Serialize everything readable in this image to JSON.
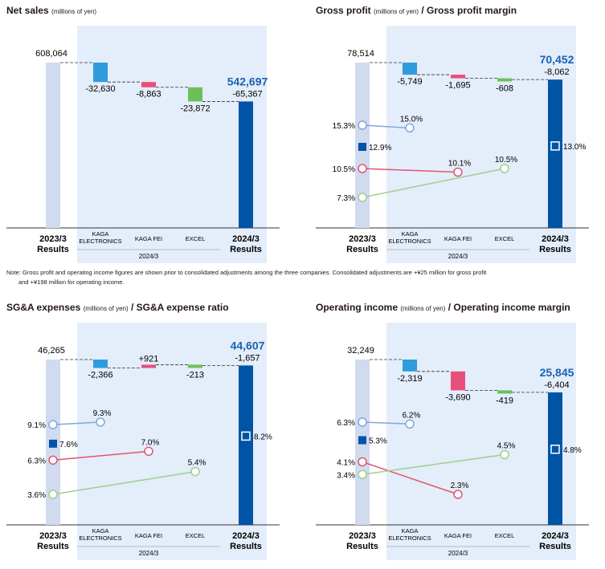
{
  "colors": {
    "bg_band": "#e4edfa",
    "prev_bar": "#d0dbef",
    "kaga": "#2e9cdb",
    "fei": "#e84f7b",
    "excel": "#6dbf5a",
    "total": "#0054a6",
    "total_label": "#1863b3",
    "line_kaga": "#7fa9db",
    "line_fei": "#e0566f",
    "line_excel": "#9fd08a",
    "axis": "#333333",
    "connector": "#333333"
  },
  "note": {
    "line1": "Note: Gross profit and operating income figures are shown prior to consolidated adjustments among the three companies. Consolidated adjustments are +¥25 million for gross profit",
    "line2": "and +¥198 million for operating income."
  },
  "chart_data": [
    {
      "type": "waterfall",
      "title": "Net sales",
      "title_unit": "(millions of yen)",
      "title_suffix": "",
      "categories": [
        "2023/3 Results",
        "KAGA ELECTRONICS",
        "KAGA FEI",
        "EXCEL",
        "2024/3 Results"
      ],
      "category_labels": [
        [
          "2023/3",
          "Results"
        ],
        [
          "KAGA",
          "ELECTRONICS"
        ],
        [
          "KAGA FEI"
        ],
        [
          "EXCEL"
        ],
        [
          "2024/3",
          "Results"
        ]
      ],
      "group_label": "2024/3",
      "start": {
        "value": 608064,
        "label": "608,064"
      },
      "changes": [
        {
          "name": "KAGA ELECTRONICS",
          "value": -32630,
          "label": "-32,630"
        },
        {
          "name": "KAGA FEI",
          "value": -8863,
          "label": "-8,863"
        },
        {
          "name": "EXCEL",
          "value": -23872,
          "label": "-23,872"
        }
      ],
      "end": {
        "value": 542697,
        "label": "542,697",
        "change_label": "-65,367"
      },
      "ymin": 330000,
      "ylim": [
        0,
        608064
      ],
      "ratios": null
    },
    {
      "type": "waterfall",
      "title": "Gross profit",
      "title_unit": "(millions of yen)",
      "title_suffix": "/ Gross profit margin",
      "categories": [
        "2023/3 Results",
        "KAGA ELECTRONICS",
        "KAGA FEI",
        "EXCEL",
        "2024/3 Results"
      ],
      "category_labels": [
        [
          "2023/3",
          "Results"
        ],
        [
          "KAGA",
          "ELECTRONICS"
        ],
        [
          "KAGA FEI"
        ],
        [
          "EXCEL"
        ],
        [
          "2024/3",
          "Results"
        ]
      ],
      "group_label": "2024/3",
      "start": {
        "value": 78514,
        "label": "78,514"
      },
      "changes": [
        {
          "name": "KAGA ELECTRONICS",
          "value": -5749,
          "label": "-5,749"
        },
        {
          "name": "KAGA FEI",
          "value": -1695,
          "label": "-1,695"
        },
        {
          "name": "EXCEL",
          "value": -608,
          "label": "-608"
        }
      ],
      "end": {
        "value": 70452,
        "label": "70,452",
        "change_label": "-8,062"
      },
      "ratios": {
        "prev_total": {
          "value": 12.9,
          "label": "12.9%"
        },
        "curr_total": {
          "value": 13.0,
          "label": "13.0%"
        },
        "lines": [
          {
            "name": "KAGA ELECTRONICS",
            "from": 15.3,
            "to": 15.0,
            "from_label": "15.3%",
            "to_label": "15.0%",
            "to_index": 1
          },
          {
            "name": "KAGA FEI",
            "from": 10.5,
            "to": 10.1,
            "from_label": "10.5%",
            "to_label": "10.1%",
            "to_index": 2
          },
          {
            "name": "EXCEL",
            "from": 7.3,
            "to": 10.5,
            "from_label": "7.3%",
            "to_label": "10.5%",
            "to_index": 3
          }
        ]
      }
    },
    {
      "type": "waterfall",
      "title": "SG&A expenses",
      "title_unit": "(millions of yen)",
      "title_suffix": "/ SG&A expense ratio",
      "categories": [
        "2023/3 Results",
        "KAGA ELECTRONICS",
        "KAGA FEI",
        "EXCEL",
        "2024/3 Results"
      ],
      "category_labels": [
        [
          "2023/3",
          "Results"
        ],
        [
          "KAGA",
          "ELECTRONICS"
        ],
        [
          "KAGA FEI"
        ],
        [
          "EXCEL"
        ],
        [
          "2024/3",
          "Results"
        ]
      ],
      "group_label": "2024/3",
      "start": {
        "value": 46265,
        "label": "46,265"
      },
      "changes": [
        {
          "name": "KAGA ELECTRONICS",
          "value": -2366,
          "label": "-2,366"
        },
        {
          "name": "KAGA FEI",
          "value": 921,
          "label": "+921"
        },
        {
          "name": "EXCEL",
          "value": -213,
          "label": "-213"
        }
      ],
      "end": {
        "value": 44607,
        "label": "44,607",
        "change_label": "-1,657"
      },
      "ratios": {
        "prev_total": {
          "value": 7.6,
          "label": "7.6%"
        },
        "curr_total": {
          "value": 8.2,
          "label": "8.2%"
        },
        "lines": [
          {
            "name": "KAGA ELECTRONICS",
            "from": 9.1,
            "to": 9.3,
            "from_label": "9.1%",
            "to_label": "9.3%",
            "to_index": 1
          },
          {
            "name": "KAGA FEI",
            "from": 6.3,
            "to": 7.0,
            "from_label": "6.3%",
            "to_label": "7.0%",
            "to_index": 2
          },
          {
            "name": "EXCEL",
            "from": 3.6,
            "to": 5.4,
            "from_label": "3.6%",
            "to_label": "5.4%",
            "to_index": 3
          }
        ]
      }
    },
    {
      "type": "waterfall",
      "title": "Operating income",
      "title_unit": "(millions of yen)",
      "title_suffix": "/ Operating income margin",
      "categories": [
        "2023/3 Results",
        "KAGA ELECTRONICS",
        "KAGA FEI",
        "EXCEL",
        "2024/3 Results"
      ],
      "category_labels": [
        [
          "2023/3",
          "Results"
        ],
        [
          "KAGA",
          "ELECTRONICS"
        ],
        [
          "KAGA FEI"
        ],
        [
          "EXCEL"
        ],
        [
          "2024/3",
          "Results"
        ]
      ],
      "group_label": "2024/3",
      "start": {
        "value": 32249,
        "label": "32,249"
      },
      "changes": [
        {
          "name": "KAGA ELECTRONICS",
          "value": -2319,
          "label": "-2,319"
        },
        {
          "name": "KAGA FEI",
          "value": -3690,
          "label": "-3,690"
        },
        {
          "name": "EXCEL",
          "value": -419,
          "label": "-419"
        }
      ],
      "end": {
        "value": 25845,
        "label": "25,845",
        "change_label": "-6,404"
      },
      "ratios": {
        "prev_total": {
          "value": 5.3,
          "label": "5.3%"
        },
        "curr_total": {
          "value": 4.8,
          "label": "4.8%"
        },
        "lines": [
          {
            "name": "KAGA ELECTRONICS",
            "from": 6.3,
            "to": 6.2,
            "from_label": "6.3%",
            "to_label": "6.2%",
            "to_index": 1
          },
          {
            "name": "KAGA FEI",
            "from": 4.1,
            "to": 2.3,
            "from_label": "4.1%",
            "to_label": "2.3%",
            "to_index": 2
          },
          {
            "name": "EXCEL",
            "from": 3.4,
            "to": 4.5,
            "from_label": "3.4%",
            "to_label": "4.5%",
            "to_index": 3
          }
        ]
      }
    }
  ]
}
